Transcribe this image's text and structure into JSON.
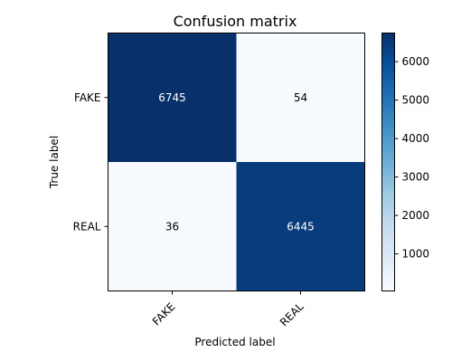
{
  "chart_data": {
    "type": "heatmap",
    "title": "Confusion matrix",
    "xlabel": "Predicted label",
    "ylabel": "True label",
    "x_categories": [
      "FAKE",
      "REAL"
    ],
    "y_categories": [
      "FAKE",
      "REAL"
    ],
    "cells": [
      [
        6745,
        54
      ],
      [
        36,
        6445
      ]
    ],
    "colormap": "Blues",
    "colorbar": {
      "range": [
        36,
        6745
      ],
      "ticks": [
        "1000",
        "2000",
        "3000",
        "4000",
        "5000",
        "6000"
      ]
    },
    "grid": false,
    "x_tick_rotation_deg": 45
  }
}
